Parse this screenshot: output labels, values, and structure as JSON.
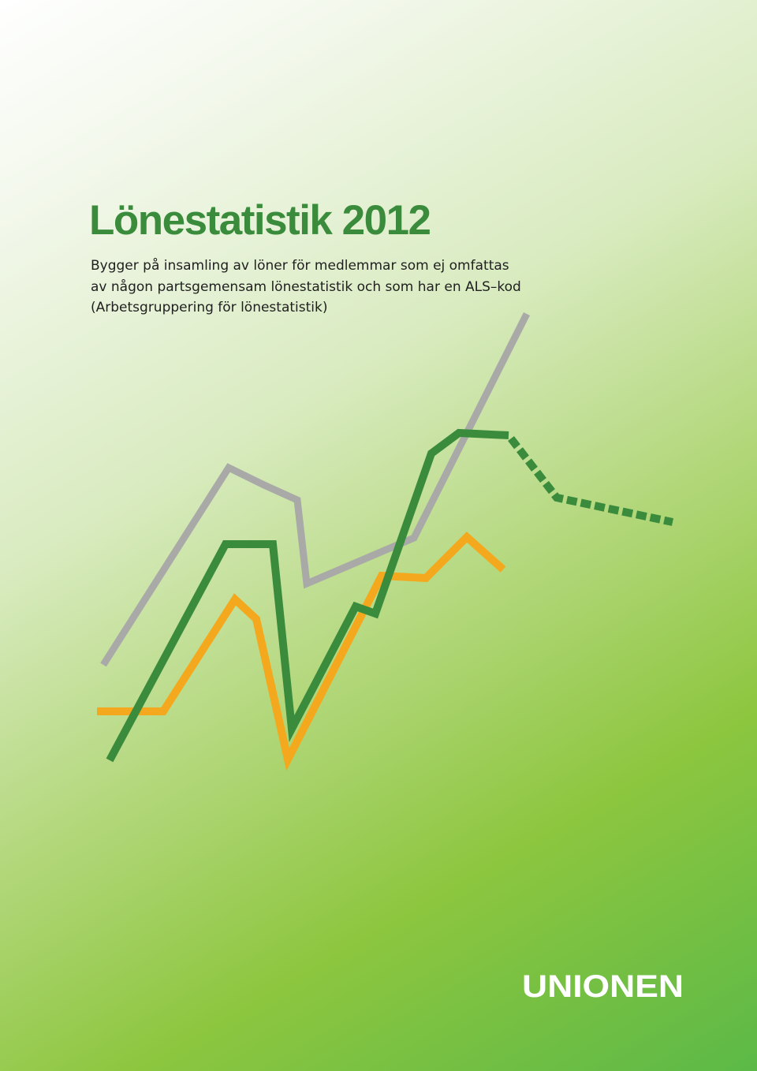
{
  "title": "Lönestatistik 2012",
  "subtitle_lines": [
    "Bygger på insamling av löner för medlemmar som ej omfattas",
    "av någon partsgemensam lönestatistik och som har en ALS–kod",
    "(Arbetsgruppering för lönestatistik)"
  ],
  "logo": {
    "text": "UNIONEN"
  },
  "colors": {
    "title": "#3a8c3c",
    "gray_line": "#a9aaa8",
    "green_line": "#3a8c3c",
    "orange_line": "#f4a81d",
    "logo": "#ffffff"
  }
}
